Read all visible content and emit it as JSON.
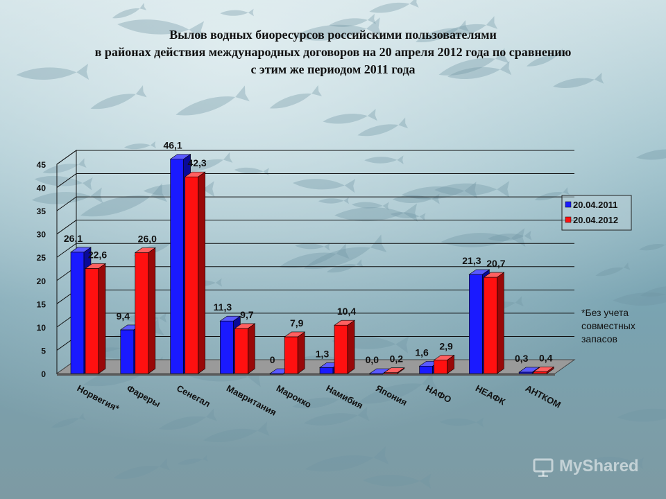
{
  "title_lines": [
    "Вылов водных биоресурсов российскими пользователями",
    "в районах действия международных договоров на 20 апреля 2012 года по сравнению",
    "с этим же периодом 2011 года"
  ],
  "footnote": "*Без учета совместных запасов",
  "watermark": "MyShared",
  "colors": {
    "series_2011": "#1a1aff",
    "series_2012": "#ff1010"
  },
  "chart_data": {
    "type": "bar",
    "title": "Вылов водных биоресурсов российскими пользователями в районах действия международных договоров на 20 апреля 2012 года по сравнению с этим же периодом 2011 года",
    "categories": [
      "Норвегия*",
      "Фареры",
      "Сенегал",
      "Мавритания",
      "Марокко",
      "Намибия",
      "Япония",
      "НАФО",
      "НЕАФК",
      "АНТКОМ"
    ],
    "series": [
      {
        "name": "20.04.2011",
        "values": [
          26.1,
          9.4,
          46.1,
          11.3,
          0,
          1.3,
          0.0,
          1.6,
          21.3,
          0.3
        ],
        "labels": [
          "26,1",
          "9,4",
          "46,1",
          "11,3",
          "0",
          "1,3",
          "0,0",
          "1,6",
          "21,3",
          "0,3"
        ]
      },
      {
        "name": "20.04.2012",
        "values": [
          22.6,
          26.0,
          42.3,
          9.7,
          7.9,
          10.4,
          0.2,
          2.9,
          20.7,
          0.4
        ],
        "labels": [
          "22,6",
          "26,0",
          "42,3",
          "9,7",
          "7,9",
          "10,4",
          "0,2",
          "2,9",
          "20,7",
          "0,4"
        ]
      }
    ],
    "yticks": [
      0,
      5,
      10,
      15,
      20,
      25,
      30,
      35,
      40,
      45
    ],
    "ylim": [
      0,
      45
    ],
    "xlabel": "",
    "ylabel": "",
    "grid": true,
    "legend": "right"
  }
}
